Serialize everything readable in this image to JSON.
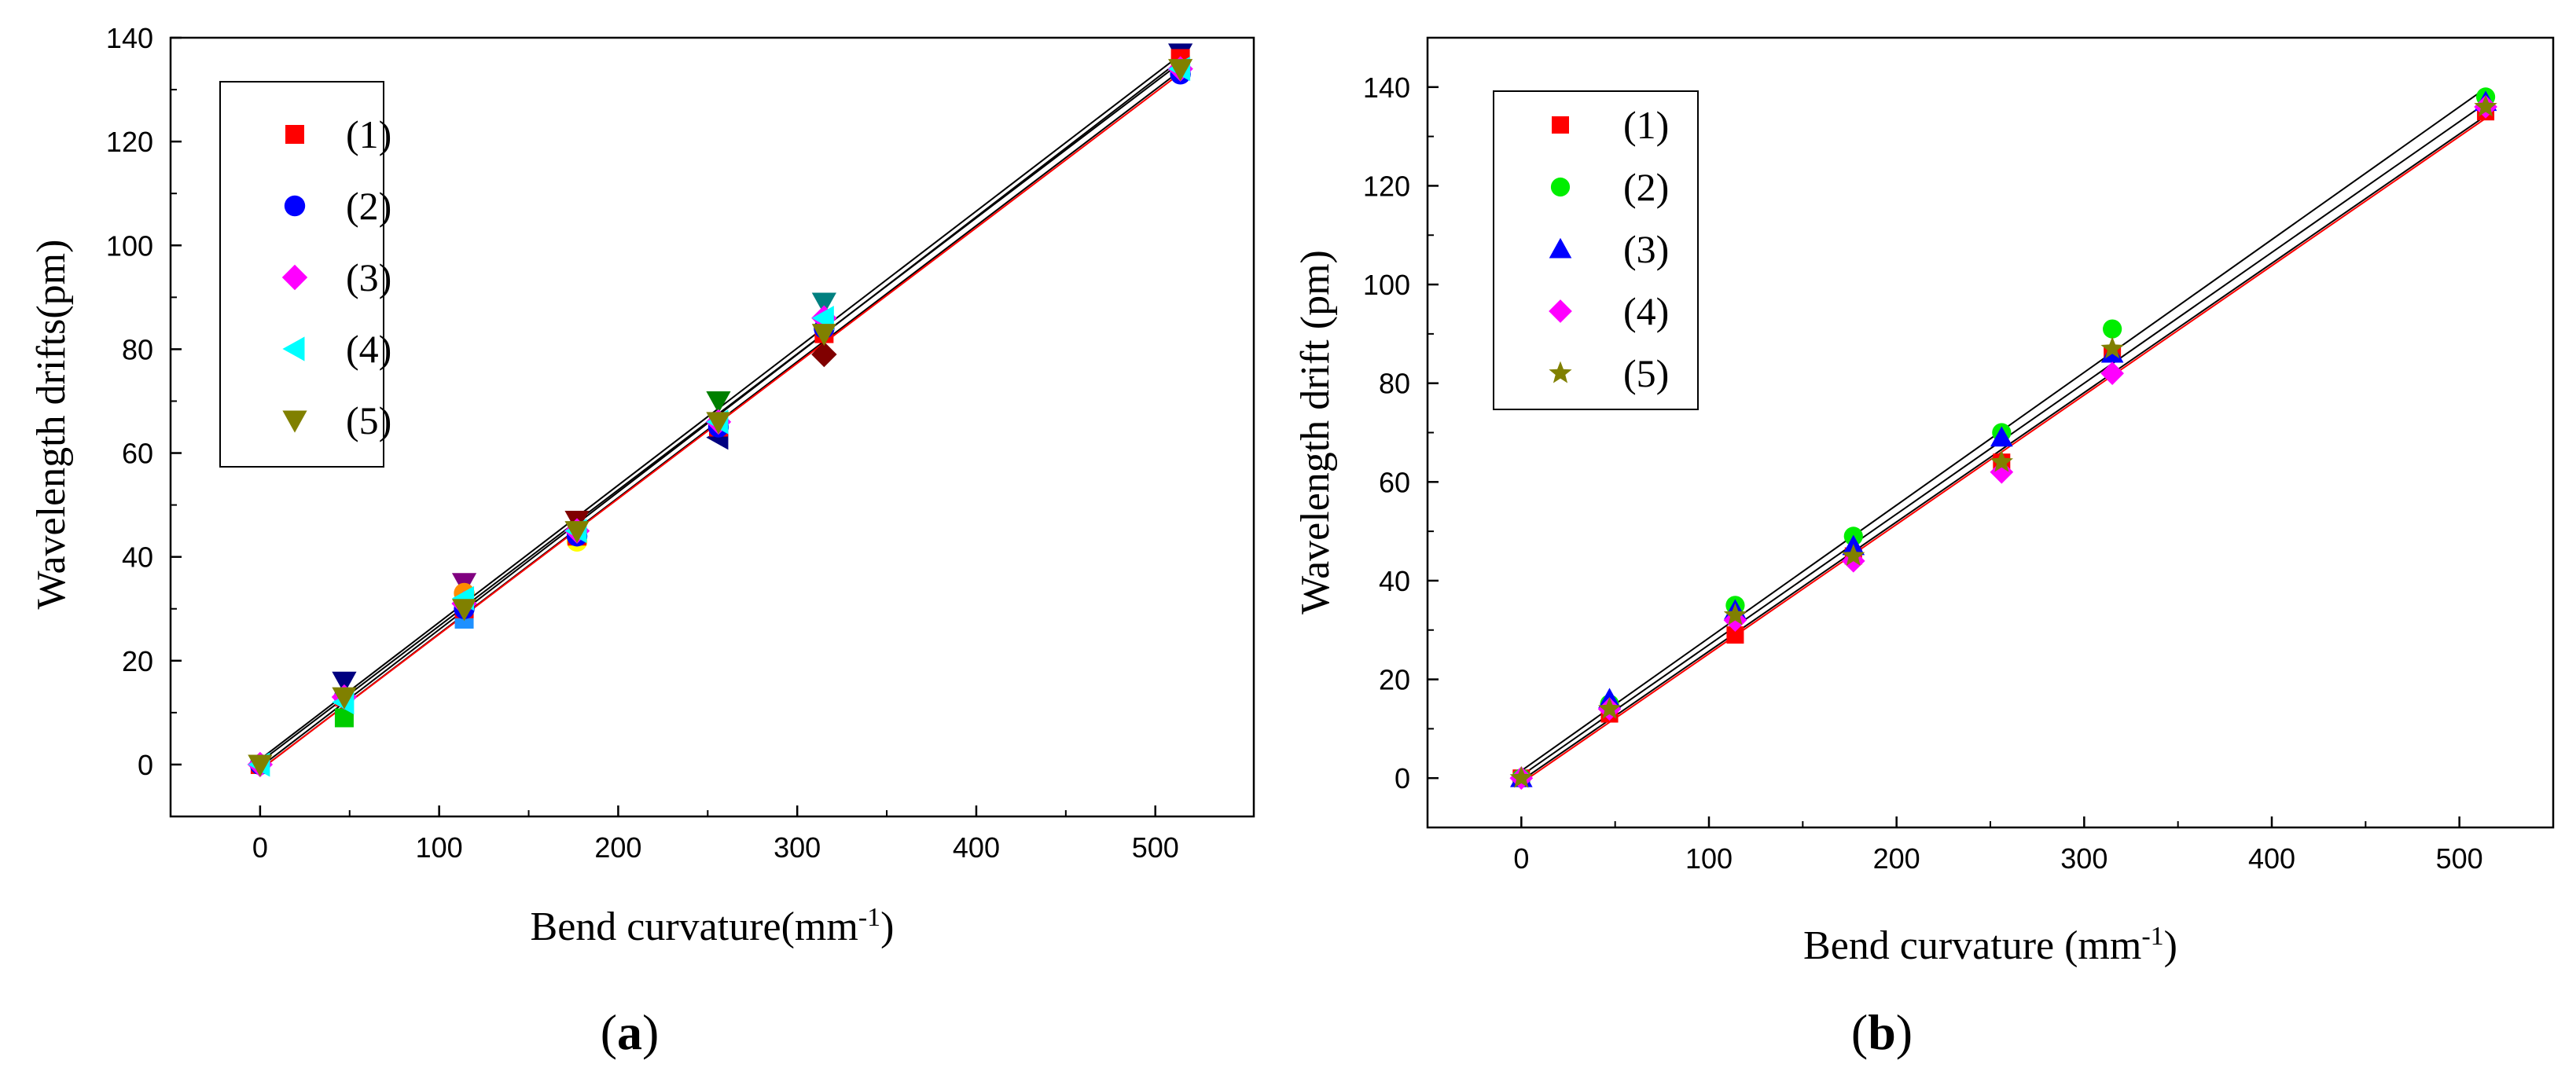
{
  "chart_data": [
    {
      "id": "a",
      "type": "scatter",
      "panel_label": "a",
      "xlabel": "Bend curvature(mm",
      "xlabel_sup": "-1",
      "xlabel_close": ")",
      "ylabel": "Wavelength drifts(pm)",
      "xlim": [
        -50,
        555
      ],
      "ylim": [
        -10,
        140
      ],
      "xticks": [
        0,
        100,
        200,
        300,
        400,
        500
      ],
      "yticks": [
        0,
        20,
        40,
        60,
        80,
        100,
        120,
        140
      ],
      "legend_position": "top-left",
      "grid": false,
      "x": [
        0,
        47,
        114,
        177,
        256,
        315,
        514
      ],
      "series": [
        {
          "name": "(1)",
          "marker": "square",
          "color": "#ff0000",
          "values": [
            0,
            13,
            30,
            44,
            65,
            83,
            136
          ]
        },
        {
          "name": "(2)",
          "marker": "circle",
          "color": "#0000ff",
          "values": [
            0,
            13,
            30,
            44,
            65,
            84,
            133
          ]
        },
        {
          "name": "(3)",
          "marker": "diamond",
          "color": "#ff00ff",
          "values": [
            0,
            13,
            31,
            45,
            66,
            86,
            134
          ]
        },
        {
          "name": "(4)",
          "marker": "triangle-left",
          "color": "#00ffff",
          "values": [
            0,
            12,
            32,
            45,
            66,
            86,
            134
          ]
        },
        {
          "name": "(5)",
          "marker": "triangle-down",
          "color": "#808000",
          "values": [
            0,
            13,
            30,
            45,
            66,
            83,
            134
          ]
        }
      ],
      "extra_points": [
        {
          "color": "#00cc00",
          "marker": "square",
          "x": 47,
          "y": 9
        },
        {
          "color": "#ffff00",
          "marker": "circle",
          "x": 177,
          "y": 43
        },
        {
          "color": "#1e90ff",
          "marker": "square",
          "x": 114,
          "y": 28
        },
        {
          "color": "#800080",
          "marker": "triangle-down",
          "x": 114,
          "y": 35
        },
        {
          "color": "#000080",
          "marker": "triangle-down",
          "x": 47,
          "y": 16
        },
        {
          "color": "#008080",
          "marker": "triangle-down",
          "x": 315,
          "y": 89
        },
        {
          "color": "#000080",
          "marker": "triangle-left",
          "x": 256,
          "y": 63
        },
        {
          "color": "#008000",
          "marker": "triangle-down",
          "x": 256,
          "y": 70
        },
        {
          "color": "#800000",
          "marker": "diamond",
          "x": 315,
          "y": 79
        },
        {
          "color": "#800000",
          "marker": "triangle-down",
          "x": 177,
          "y": 47
        },
        {
          "color": "#000080",
          "marker": "triangle-down",
          "x": 514,
          "y": 137
        },
        {
          "color": "#ff8c00",
          "marker": "circle",
          "x": 114,
          "y": 33
        }
      ],
      "fit_lines": [
        {
          "color": "#000000",
          "y0": 1.0,
          "slope": 0.264
        },
        {
          "color": "#000000",
          "y0": -0.5,
          "slope": 0.265
        },
        {
          "color": "#000000",
          "y0": 0.5,
          "slope": 0.262
        },
        {
          "color": "#000000",
          "y0": -1.0,
          "slope": 0.262
        },
        {
          "color": "#ff0000",
          "y0": -1.0,
          "slope": 0.261
        }
      ]
    },
    {
      "id": "b",
      "type": "scatter",
      "panel_label": "b",
      "xlabel": "Bend curvature (mm",
      "xlabel_sup": "-1",
      "xlabel_close": ")",
      "ylabel": "Wavelength drift (pm)",
      "xlim": [
        -50,
        550
      ],
      "ylim": [
        -10,
        150
      ],
      "xticks": [
        0,
        100,
        200,
        300,
        400,
        500
      ],
      "yticks": [
        0,
        20,
        40,
        60,
        80,
        100,
        120,
        140
      ],
      "legend_position": "top-left",
      "grid": false,
      "x": [
        0,
        47,
        114,
        177,
        256,
        315,
        514
      ],
      "series": [
        {
          "name": "(1)",
          "marker": "square",
          "color": "#ff0000",
          "values": [
            0,
            13,
            29,
            45,
            64,
            86,
            135
          ]
        },
        {
          "name": "(2)",
          "marker": "circle",
          "color": "#00ee00",
          "values": [
            0,
            15,
            35,
            49,
            70,
            91,
            138
          ]
        },
        {
          "name": "(3)",
          "marker": "triangle-up",
          "color": "#0000ff",
          "values": [
            0,
            16,
            34,
            47,
            69,
            86,
            137
          ]
        },
        {
          "name": "(4)",
          "marker": "diamond",
          "color": "#ff00ff",
          "values": [
            0,
            14,
            32,
            44,
            62,
            82,
            136
          ]
        },
        {
          "name": "(5)",
          "marker": "star",
          "color": "#808000",
          "values": [
            0,
            14,
            33,
            45,
            64,
            87,
            136
          ]
        }
      ],
      "extra_points": [],
      "fit_lines": [
        {
          "color": "#000000",
          "y0": 1.5,
          "slope": 0.269
        },
        {
          "color": "#000000",
          "y0": 0.5,
          "slope": 0.265
        },
        {
          "color": "#000000",
          "y0": -0.5,
          "slope": 0.262
        },
        {
          "color": "#ff0000",
          "y0": -1.0,
          "slope": 0.262
        }
      ]
    }
  ]
}
